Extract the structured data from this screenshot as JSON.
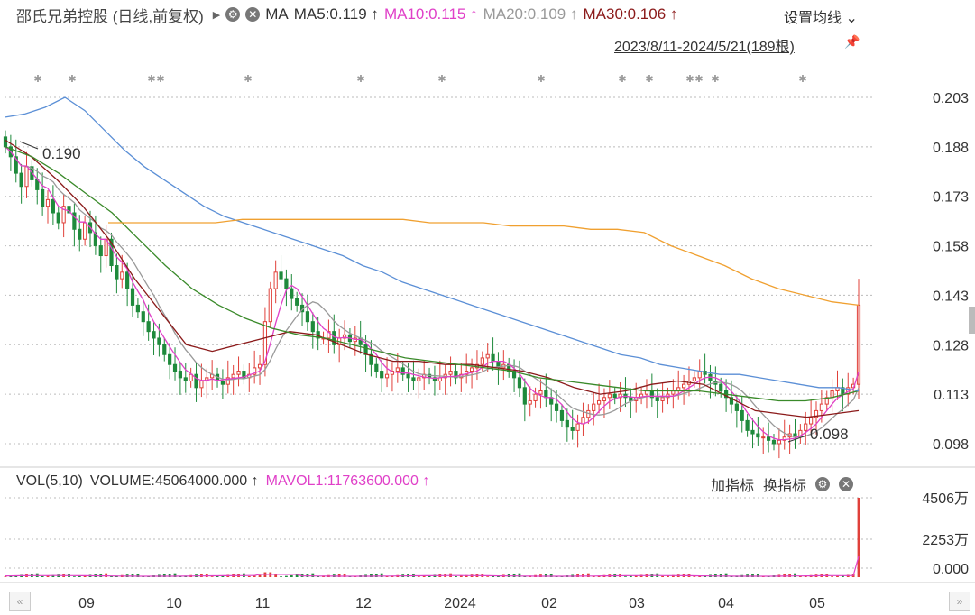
{
  "header": {
    "title": "邵氏兄弟控股 (日线,前复权)",
    "ma_label": "MA",
    "ma5": "MA5:0.119 ↑",
    "ma10": "MA10:0.115 ↑",
    "ma20": "MA20:0.109 ↑",
    "ma30": "MA30:0.106 ↑",
    "settings": "设置均线",
    "range": "2023/8/11-2024/5/21(189根)"
  },
  "volume_header": {
    "vol": "VOL(5,10)",
    "volume": "VOLUME:45064000.000 ↑",
    "mavol1": "MAVOL1:11763600.000 ↑",
    "add_indicator": "加指标",
    "switch_indicator": "换指标"
  },
  "colors": {
    "up": "#e0403a",
    "down": "#1f8a3c",
    "ma5": "#e040c8",
    "ma10": "#999999",
    "ma20": "#8b1a1a",
    "ma30": "#3a8a2a",
    "ma_long_blue": "#5b8fd6",
    "ma_long_orange": "#f0a030"
  },
  "chart_data": [
    {
      "type": "candlestick",
      "y_ticks": [
        "0.203",
        "0.188",
        "0.173",
        "0.158",
        "0.143",
        "0.128",
        "0.113",
        "0.098"
      ],
      "ylim": [
        0.095,
        0.206
      ],
      "x_ticks": [
        "09",
        "10",
        "11",
        "12",
        "2024",
        "02",
        "03",
        "04",
        "05"
      ],
      "annotations": [
        "0.190",
        "0.098"
      ],
      "close_path": [
        0.188,
        0.185,
        0.18,
        0.176,
        0.182,
        0.178,
        0.175,
        0.17,
        0.172,
        0.168,
        0.165,
        0.17,
        0.168,
        0.163,
        0.16,
        0.165,
        0.162,
        0.158,
        0.155,
        0.16,
        0.152,
        0.148,
        0.15,
        0.145,
        0.14,
        0.138,
        0.135,
        0.132,
        0.13,
        0.128,
        0.125,
        0.122,
        0.12,
        0.118,
        0.117,
        0.119,
        0.115,
        0.117,
        0.118,
        0.119,
        0.117,
        0.116,
        0.118,
        0.119,
        0.12,
        0.118,
        0.119,
        0.121,
        0.122,
        0.135,
        0.145,
        0.15,
        0.148,
        0.145,
        0.142,
        0.14,
        0.138,
        0.135,
        0.132,
        0.13,
        0.13,
        0.132,
        0.128,
        0.13,
        0.131,
        0.129,
        0.13,
        0.128,
        0.125,
        0.122,
        0.12,
        0.118,
        0.119,
        0.12,
        0.121,
        0.119,
        0.118,
        0.117,
        0.118,
        0.119,
        0.118,
        0.117,
        0.118,
        0.119,
        0.12,
        0.118,
        0.119,
        0.12,
        0.121,
        0.122,
        0.124,
        0.125,
        0.123,
        0.121,
        0.122,
        0.12,
        0.118,
        0.115,
        0.11,
        0.111,
        0.113,
        0.114,
        0.112,
        0.11,
        0.108,
        0.105,
        0.103,
        0.102,
        0.104,
        0.106,
        0.108,
        0.11,
        0.111,
        0.112,
        0.113,
        0.112,
        0.113,
        0.112,
        0.111,
        0.112,
        0.113,
        0.114,
        0.112,
        0.111,
        0.112,
        0.113,
        0.114,
        0.115,
        0.116,
        0.117,
        0.118,
        0.12,
        0.119,
        0.117,
        0.116,
        0.114,
        0.112,
        0.11,
        0.108,
        0.105,
        0.102,
        0.101,
        0.1,
        0.1,
        0.099,
        0.098,
        0.099,
        0.1,
        0.101,
        0.1,
        0.102,
        0.104,
        0.106,
        0.108,
        0.11,
        0.112,
        0.114,
        0.115,
        0.113,
        0.115,
        0.116,
        0.14
      ],
      "ma_blue_path": [
        0.197,
        0.198,
        0.2,
        0.203,
        0.199,
        0.193,
        0.187,
        0.182,
        0.178,
        0.174,
        0.17,
        0.167,
        0.165,
        0.163,
        0.161,
        0.159,
        0.157,
        0.155,
        0.152,
        0.15,
        0.147,
        0.145,
        0.143,
        0.141,
        0.139,
        0.137,
        0.135,
        0.133,
        0.131,
        0.129,
        0.127,
        0.125,
        0.124,
        0.122,
        0.121,
        0.12,
        0.119,
        0.119,
        0.118,
        0.117,
        0.116,
        0.115,
        0.115,
        0.114
      ],
      "ma_orange_path": [
        0.165,
        0.165,
        0.165,
        0.165,
        0.165,
        0.166,
        0.166,
        0.166,
        0.166,
        0.166,
        0.166,
        0.166,
        0.165,
        0.165,
        0.165,
        0.164,
        0.164,
        0.164,
        0.163,
        0.163,
        0.162,
        0.158,
        0.155,
        0.152,
        0.148,
        0.145,
        0.143,
        0.141,
        0.14
      ],
      "ma30_path": [
        0.188,
        0.185,
        0.18,
        0.174,
        0.168,
        0.16,
        0.152,
        0.145,
        0.14,
        0.136,
        0.133,
        0.131,
        0.13,
        0.128,
        0.126,
        0.124,
        0.123,
        0.122,
        0.121,
        0.12,
        0.118,
        0.117,
        0.116,
        0.115,
        0.114,
        0.114,
        0.114,
        0.113,
        0.112,
        0.111,
        0.111,
        0.112,
        0.114
      ],
      "ma20_path": [
        0.19,
        0.185,
        0.178,
        0.17,
        0.16,
        0.148,
        0.138,
        0.128,
        0.126,
        0.128,
        0.13,
        0.132,
        0.131,
        0.128,
        0.125,
        0.123,
        0.123,
        0.122,
        0.122,
        0.121,
        0.12,
        0.118,
        0.115,
        0.113,
        0.114,
        0.116,
        0.117,
        0.116,
        0.112,
        0.108,
        0.107,
        0.106,
        0.107,
        0.108
      ]
    },
    {
      "type": "bar",
      "y_ticks": [
        "4506万",
        "2253万",
        "0.000"
      ],
      "ylim": [
        0,
        45064000
      ],
      "values_last": 45064000,
      "mavol1": 11763600
    }
  ]
}
